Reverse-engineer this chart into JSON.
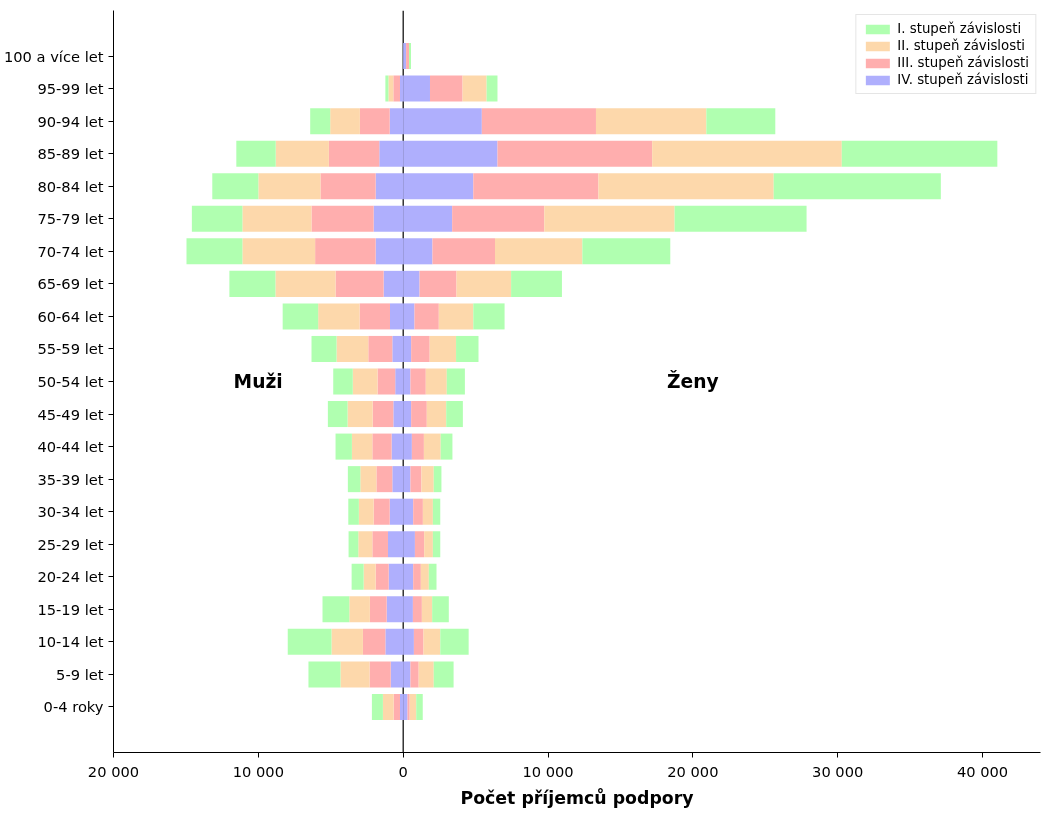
{
  "chart_data": {
    "type": "bar",
    "orientation": "horizontal",
    "stacked": true,
    "xlabel": "Počet příjemců podpory",
    "categories": [
      "100 a více let",
      "95-99 let",
      "90-94 let",
      "85-89 let",
      "80-84 let",
      "75-79 let",
      "70-74 let",
      "65-69 let",
      "60-64 let",
      "55-59 let",
      "50-54 let",
      "45-49 let",
      "40-44 let",
      "35-39 let",
      "30-34 let",
      "25-29 let",
      "20-24 let",
      "15-19 let",
      "10-14 let",
      "5-9 let",
      "0-4 roky"
    ],
    "series": [
      {
        "color": "#afaffd",
        "values": [
          null,
          -220,
          -930,
          -1650,
          -1900,
          -2040,
          -1900,
          -1350,
          -910,
          -750,
          -550,
          -680,
          -800,
          -750,
          -930,
          -1050,
          -1000,
          -1140,
          -1230,
          -860,
          -220
        ]
      },
      {
        "color": "#ffaeae",
        "values": [
          null,
          -460,
          -2060,
          -3480,
          -3810,
          -4290,
          -4180,
          -3320,
          -2100,
          -1660,
          -1220,
          -1430,
          -1330,
          -1100,
          -1110,
          -1080,
          -900,
          -1160,
          -1550,
          -1460,
          -440
        ]
      },
      {
        "color": "#fdd8ab",
        "values": [
          null,
          -340,
          -2050,
          -3670,
          -4290,
          -4770,
          -5020,
          -4150,
          -2860,
          -2190,
          -1710,
          -1730,
          -1410,
          -1110,
          -1020,
          -970,
          -830,
          -1420,
          -2170,
          -2010,
          -740
        ]
      },
      {
        "color": "#b0ffb0",
        "values": [
          null,
          -210,
          -1380,
          -2720,
          -3180,
          -3490,
          -3860,
          -3180,
          -2450,
          -1730,
          -1350,
          -1360,
          -1130,
          -860,
          -730,
          -670,
          -830,
          -1850,
          -3020,
          -2210,
          -760
        ]
      },
      {
        "name": "IV. stupeň závislosti",
        "color": "#afaffd",
        "values": [
          200,
          1850,
          5430,
          6510,
          4840,
          3380,
          2020,
          1130,
          780,
          550,
          500,
          550,
          600,
          500,
          690,
          810,
          690,
          670,
          740,
          500,
          300
        ]
      },
      {
        "name": "III. stupeň závislosti",
        "color": "#ffaeae",
        "values": [
          200,
          2250,
          7880,
          10680,
          8640,
          6360,
          4320,
          2550,
          1680,
          1280,
          1060,
          1080,
          830,
          760,
          670,
          640,
          530,
          620,
          660,
          570,
          150
        ]
      },
      {
        "name": "II. stupeň závislosti",
        "color": "#fdd8ab",
        "values": [
          null,
          1660,
          7620,
          13090,
          12100,
          9000,
          6030,
          3770,
          2380,
          1820,
          1450,
          1340,
          1160,
          850,
          690,
          600,
          550,
          710,
          1160,
          1040,
          450
        ]
      },
      {
        "name": "I. stupeň závislosti",
        "color": "#b0ffb0",
        "values": [
          140,
          750,
          4760,
          10740,
          11540,
          9110,
          6070,
          3510,
          2160,
          1550,
          1250,
          1150,
          810,
          530,
          510,
          510,
          530,
          1150,
          1960,
          1370,
          450
        ]
      }
    ],
    "xlim": [
      -20000,
      44000
    ],
    "xticks": [
      {
        "value": -20000,
        "label": "20 000"
      },
      {
        "value": -10000,
        "label": "10 000"
      },
      0,
      {
        "value": 10000,
        "label": "10 000"
      },
      {
        "value": 20000,
        "label": "20 000"
      },
      {
        "value": 30000,
        "label": "30 000"
      },
      {
        "value": 40000,
        "label": "40 000"
      }
    ],
    "ref_lines": [
      {
        "axis": "x",
        "value": 0,
        "color": "#000000"
      }
    ],
    "annotations": [
      "Muži",
      "Ženy"
    ],
    "grid": false,
    "legend": "top right"
  }
}
